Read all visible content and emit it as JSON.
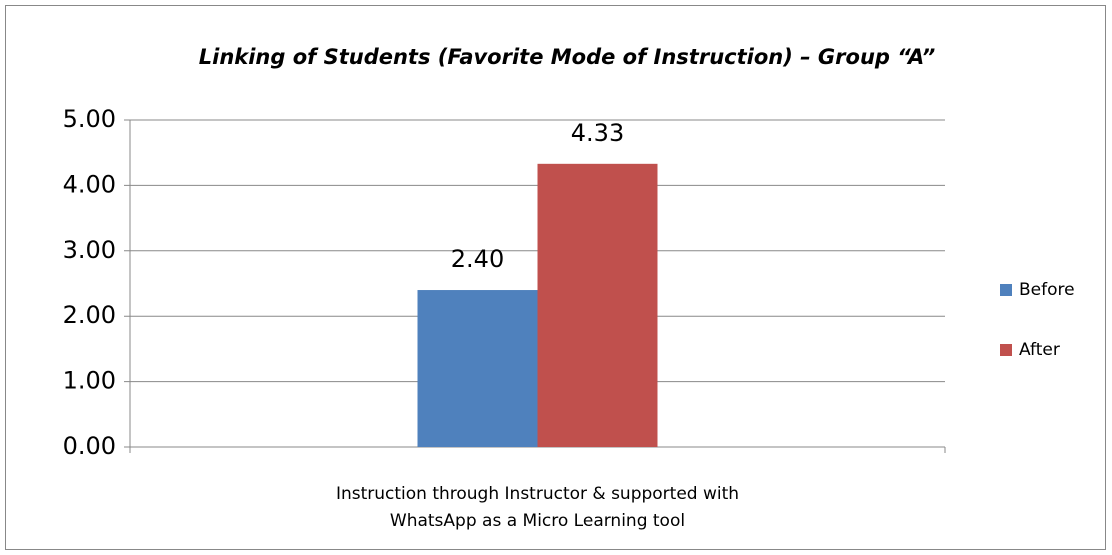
{
  "chart_data": {
    "type": "bar",
    "title": "Linking of Students (Favorite Mode of Instruction) – Group “A”",
    "categories": [
      "Instruction through Instructor & supported with WhatsApp as a Micro Learning tool"
    ],
    "series": [
      {
        "name": "Before",
        "color": "#4f81bd",
        "values": [
          2.4
        ],
        "value_labels": [
          "2.40"
        ]
      },
      {
        "name": "After",
        "color": "#c0504d",
        "values": [
          4.33
        ],
        "value_labels": [
          "4.33"
        ]
      }
    ],
    "ylim": [
      0,
      5
    ],
    "yticks": [
      {
        "value": 0,
        "label": "0.00"
      },
      {
        "value": 1,
        "label": "1.00"
      },
      {
        "value": 2,
        "label": "2.00"
      },
      {
        "value": 3,
        "label": "3.00"
      },
      {
        "value": 4,
        "label": "4.00"
      },
      {
        "value": 5,
        "label": "5.00"
      }
    ],
    "grid": true,
    "legend": "right"
  }
}
